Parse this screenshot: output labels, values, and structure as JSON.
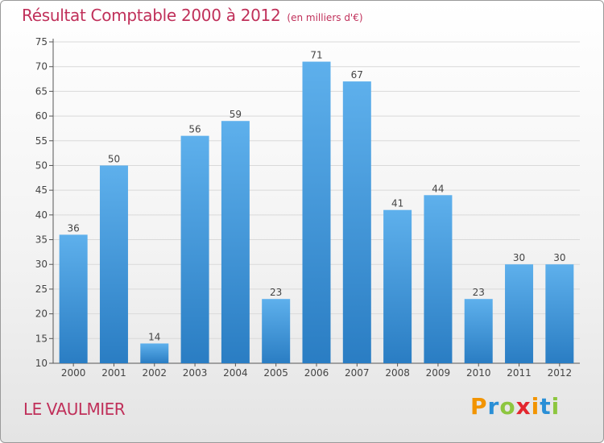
{
  "page": {
    "title": "Résultat Comptable 2000 à 2012",
    "subtitle": "(en milliers d'€)",
    "location": "LE VAULMIER",
    "brand": "Proxiti",
    "brand_colors": [
      "#f29400",
      "#2a8fd6",
      "#8dc63f",
      "#e3262e",
      "#f29400",
      "#2a8fd6",
      "#8dc63f"
    ]
  },
  "colors": {
    "title": "#c0305a",
    "bar_top": "#5eb0ec",
    "bar_bottom": "#2a7dc3",
    "grid": "#d9d9d9",
    "axis": "#555555"
  },
  "chart_data": {
    "type": "bar",
    "title": "Résultat Comptable 2000 à 2012",
    "xlabel": "",
    "ylabel": "",
    "ylim": [
      10,
      75
    ],
    "yticks": [
      10,
      15,
      20,
      25,
      30,
      35,
      40,
      45,
      50,
      55,
      60,
      65,
      70,
      75
    ],
    "categories": [
      "2000",
      "2001",
      "2002",
      "2003",
      "2004",
      "2005",
      "2006",
      "2007",
      "2008",
      "2009",
      "2010",
      "2011",
      "2012"
    ],
    "values": [
      36,
      50,
      14,
      56,
      59,
      23,
      71,
      67,
      41,
      44,
      23,
      30,
      30
    ],
    "grid": true
  }
}
